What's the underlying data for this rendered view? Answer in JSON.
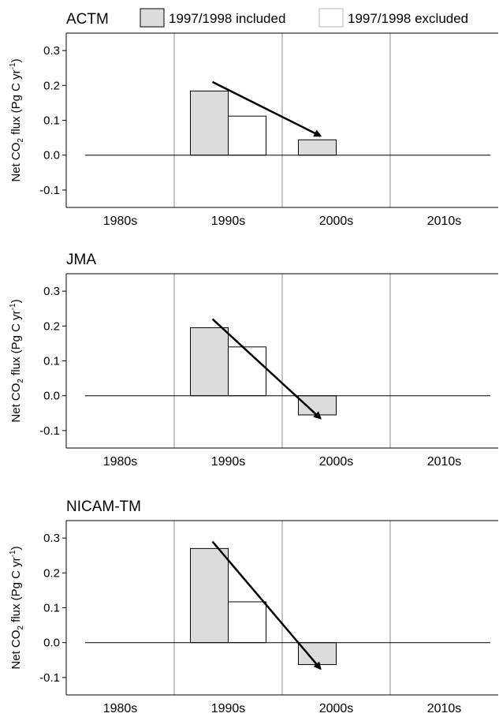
{
  "legend": {
    "included_label": "1997/1998 included",
    "excluded_label": "1997/1998 excluded"
  },
  "colors": {
    "included": "#dcdcdc",
    "excluded": "#ffffff",
    "bar_edge": "#000000",
    "divider": "#8c8c8c",
    "arrow": "#000000"
  },
  "chart_data": [
    {
      "type": "bar",
      "title": "ACTM",
      "ylabel": "Net CO2 flux (Pg C yr-1)",
      "ylabel_parts": {
        "a": "Net CO",
        "sub": "2",
        "b": " flux  (Pg C yr",
        "sup": "-1",
        "c": ")"
      },
      "categories": [
        "1980s",
        "1990s",
        "2000s",
        "2010s"
      ],
      "ylim": [
        -0.15,
        0.35
      ],
      "yticks": [
        -0.1,
        0.0,
        0.1,
        0.2,
        0.3
      ],
      "ytick_labels": [
        "-0.1",
        "0.0",
        "0.1",
        "0.2",
        "0.3"
      ],
      "series": [
        {
          "name": "1997/1998 included",
          "values": [
            null,
            0.184,
            0.044,
            null
          ]
        },
        {
          "name": "1997/1998 excluded",
          "values": [
            null,
            0.112,
            null,
            null
          ]
        }
      ],
      "arrow": {
        "from": {
          "category": "1990s",
          "y": 0.21
        },
        "to": {
          "category": "2000s",
          "y": 0.055
        }
      }
    },
    {
      "type": "bar",
      "title": "JMA",
      "ylabel": "Net CO2 flux (Pg C yr-1)",
      "ylabel_parts": {
        "a": "Net CO",
        "sub": "2",
        "b": " flux  (Pg C yr",
        "sup": "-1",
        "c": ")"
      },
      "categories": [
        "1980s",
        "1990s",
        "2000s",
        "2010s"
      ],
      "ylim": [
        -0.15,
        0.35
      ],
      "yticks": [
        -0.1,
        0.0,
        0.1,
        0.2,
        0.3
      ],
      "ytick_labels": [
        "-0.1",
        "0.0",
        "0.1",
        "0.2",
        "0.3"
      ],
      "series": [
        {
          "name": "1997/1998 included",
          "values": [
            null,
            0.195,
            -0.055,
            null
          ]
        },
        {
          "name": "1997/1998 excluded",
          "values": [
            null,
            0.14,
            null,
            null
          ]
        }
      ],
      "arrow": {
        "from": {
          "category": "1990s",
          "y": 0.22
        },
        "to": {
          "category": "2000s",
          "y": -0.065
        }
      }
    },
    {
      "type": "bar",
      "title": "NICAM-TM",
      "ylabel": "Net CO2 flux (Pg C yr-1)",
      "ylabel_parts": {
        "a": "Net CO",
        "sub": "2",
        "b": " flux  (Pg C yr",
        "sup": "-1",
        "c": ")"
      },
      "categories": [
        "1980s",
        "1990s",
        "2000s",
        "2010s"
      ],
      "ylim": [
        -0.15,
        0.35
      ],
      "yticks": [
        -0.1,
        0.0,
        0.1,
        0.2,
        0.3
      ],
      "ytick_labels": [
        "-0.1",
        "0.0",
        "0.1",
        "0.2",
        "0.3"
      ],
      "series": [
        {
          "name": "1997/1998 included",
          "values": [
            null,
            0.27,
            -0.063,
            null
          ]
        },
        {
          "name": "1997/1998 excluded",
          "values": [
            null,
            0.117,
            null,
            null
          ]
        }
      ],
      "arrow": {
        "from": {
          "category": "1990s",
          "y": 0.29
        },
        "to": {
          "category": "2000s",
          "y": -0.075
        }
      }
    }
  ]
}
